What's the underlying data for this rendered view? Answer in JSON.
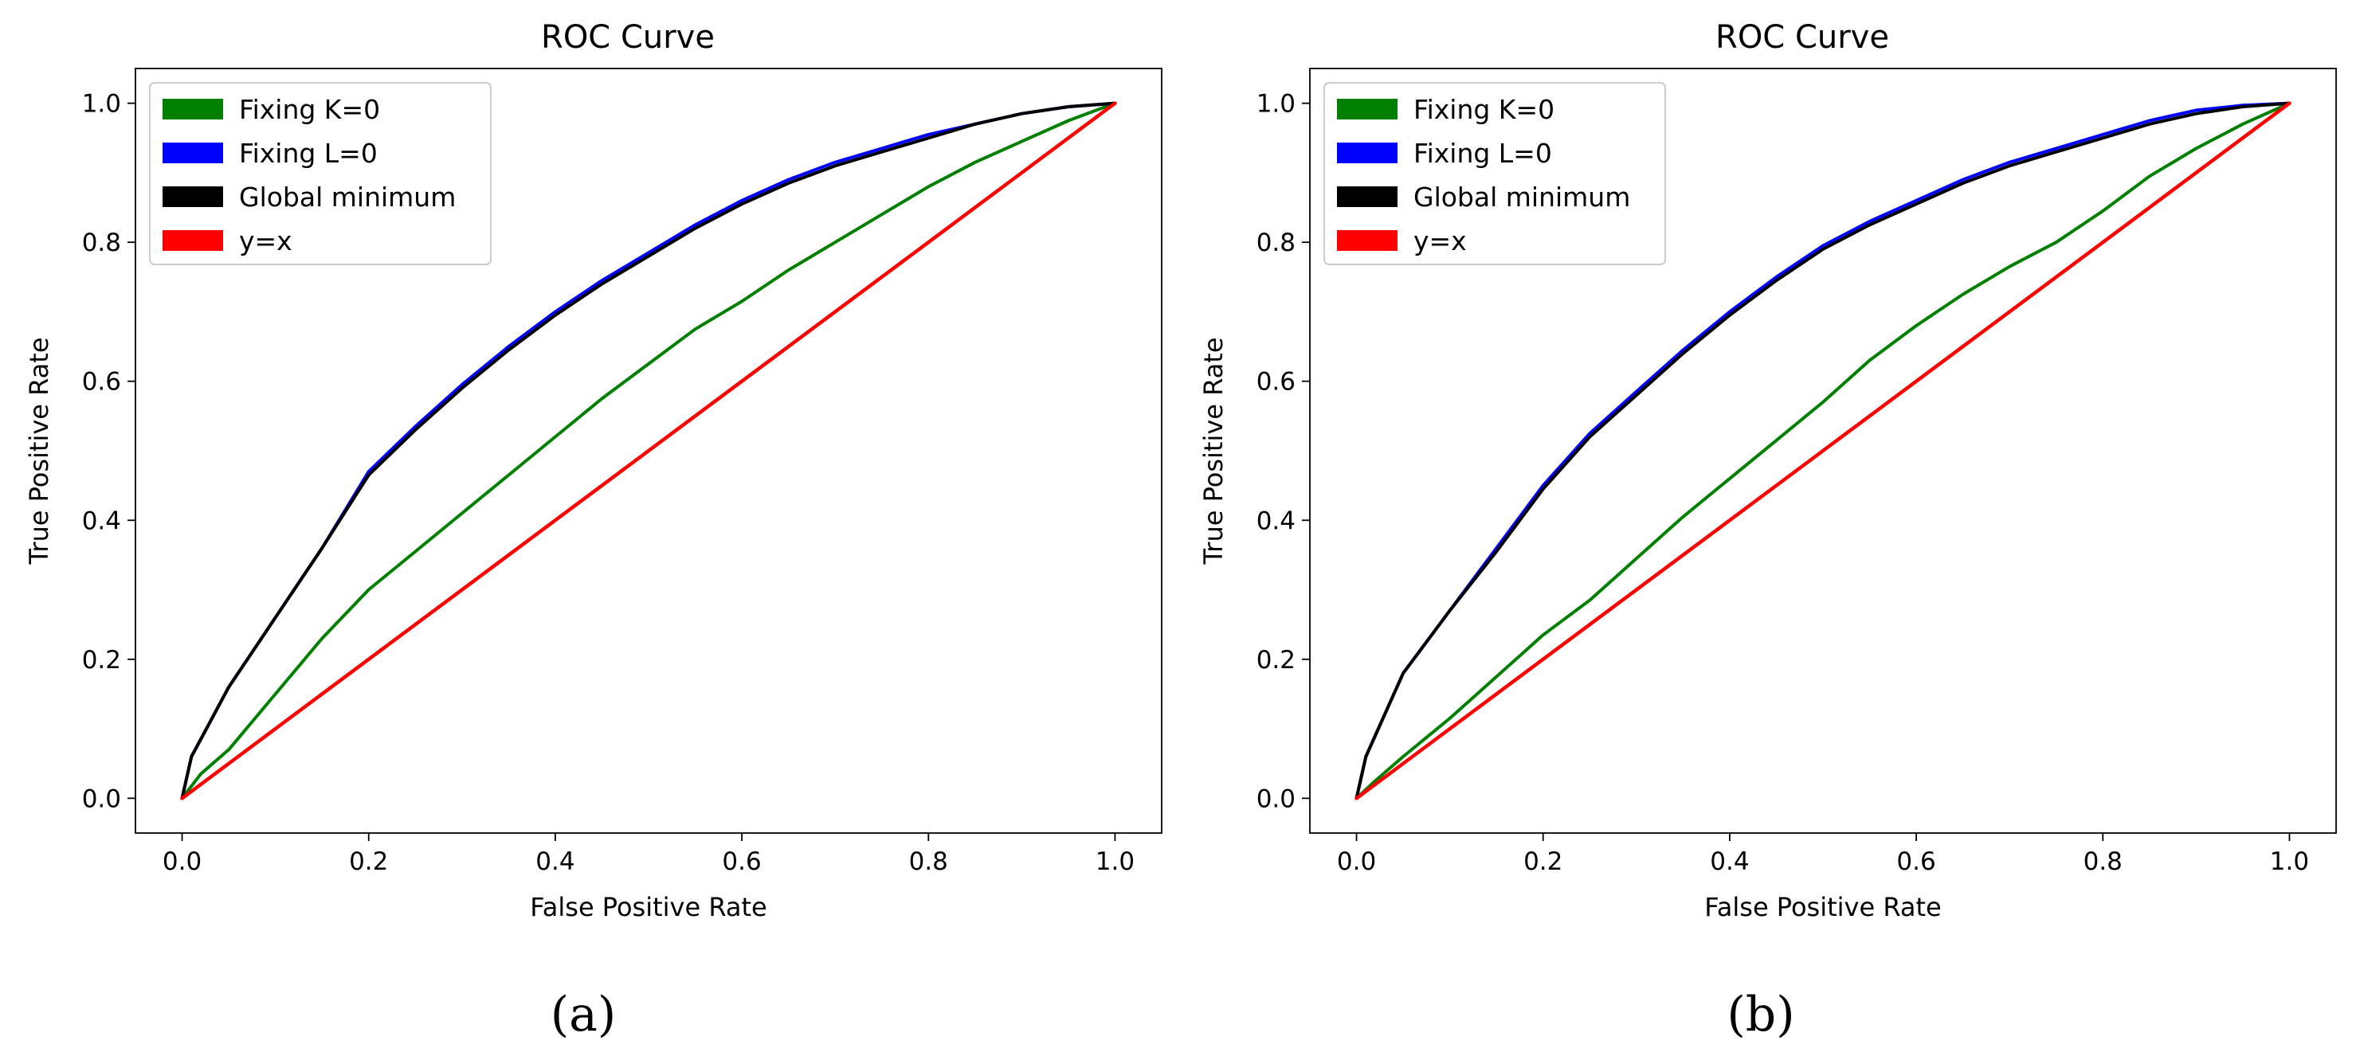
{
  "chart_data": [
    {
      "type": "line",
      "title": "ROC Curve",
      "xlabel": "False Positive Rate",
      "ylabel": "True Positive Rate",
      "caption": "(a)",
      "xlim": [
        -0.05,
        1.05
      ],
      "ylim": [
        -0.05,
        1.05
      ],
      "xticks": [
        "0.0",
        "0.2",
        "0.4",
        "0.6",
        "0.8",
        "1.0"
      ],
      "yticks": [
        "0.0",
        "0.2",
        "0.4",
        "0.6",
        "0.8",
        "1.0"
      ],
      "legend_position": "top-left",
      "series": [
        {
          "name": "Fixing K=0",
          "color": "#008000",
          "x": [
            0,
            0.02,
            0.05,
            0.1,
            0.15,
            0.2,
            0.25,
            0.3,
            0.35,
            0.4,
            0.45,
            0.5,
            0.55,
            0.6,
            0.65,
            0.7,
            0.75,
            0.8,
            0.85,
            0.9,
            0.95,
            1.0
          ],
          "y": [
            0,
            0.035,
            0.07,
            0.15,
            0.23,
            0.3,
            0.355,
            0.41,
            0.465,
            0.52,
            0.575,
            0.625,
            0.675,
            0.715,
            0.76,
            0.8,
            0.84,
            0.88,
            0.915,
            0.945,
            0.975,
            1.0
          ]
        },
        {
          "name": "Fixing L=0",
          "color": "#0000ff",
          "x": [
            0,
            0.01,
            0.03,
            0.05,
            0.1,
            0.15,
            0.2,
            0.25,
            0.3,
            0.35,
            0.4,
            0.45,
            0.5,
            0.55,
            0.6,
            0.65,
            0.7,
            0.75,
            0.8,
            0.85,
            0.9,
            0.95,
            1.0
          ],
          "y": [
            0,
            0.06,
            0.11,
            0.16,
            0.26,
            0.36,
            0.47,
            0.535,
            0.595,
            0.65,
            0.7,
            0.745,
            0.785,
            0.825,
            0.86,
            0.89,
            0.915,
            0.935,
            0.955,
            0.97,
            0.985,
            0.995,
            1.0
          ]
        },
        {
          "name": "Global minimum",
          "color": "#000000",
          "x": [
            0,
            0.01,
            0.03,
            0.05,
            0.1,
            0.15,
            0.2,
            0.25,
            0.3,
            0.35,
            0.4,
            0.45,
            0.5,
            0.55,
            0.6,
            0.65,
            0.7,
            0.75,
            0.8,
            0.85,
            0.9,
            0.95,
            1.0
          ],
          "y": [
            0,
            0.06,
            0.11,
            0.16,
            0.26,
            0.36,
            0.465,
            0.53,
            0.59,
            0.645,
            0.695,
            0.74,
            0.78,
            0.82,
            0.855,
            0.885,
            0.91,
            0.93,
            0.95,
            0.97,
            0.985,
            0.995,
            1.0
          ]
        },
        {
          "name": "y=x",
          "color": "#ff0000",
          "x": [
            0,
            1
          ],
          "y": [
            0,
            1
          ]
        }
      ]
    },
    {
      "type": "line",
      "title": "ROC Curve",
      "xlabel": "False Positive Rate",
      "ylabel": "True Positive Rate",
      "caption": "(b)",
      "xlim": [
        -0.05,
        1.05
      ],
      "ylim": [
        -0.05,
        1.05
      ],
      "xticks": [
        "0.0",
        "0.2",
        "0.4",
        "0.6",
        "0.8",
        "1.0"
      ],
      "yticks": [
        "0.0",
        "0.2",
        "0.4",
        "0.6",
        "0.8",
        "1.0"
      ],
      "legend_position": "top-left",
      "series": [
        {
          "name": "Fixing K=0",
          "color": "#008000",
          "x": [
            0,
            0.02,
            0.05,
            0.1,
            0.15,
            0.2,
            0.25,
            0.3,
            0.35,
            0.4,
            0.45,
            0.5,
            0.55,
            0.6,
            0.65,
            0.7,
            0.75,
            0.8,
            0.85,
            0.9,
            0.95,
            1.0
          ],
          "y": [
            0,
            0.025,
            0.06,
            0.115,
            0.175,
            0.235,
            0.285,
            0.345,
            0.405,
            0.46,
            0.515,
            0.57,
            0.63,
            0.68,
            0.725,
            0.765,
            0.8,
            0.845,
            0.895,
            0.935,
            0.97,
            1.0
          ]
        },
        {
          "name": "Fixing L=0",
          "color": "#0000ff",
          "x": [
            0,
            0.01,
            0.03,
            0.05,
            0.1,
            0.15,
            0.2,
            0.25,
            0.3,
            0.35,
            0.4,
            0.45,
            0.5,
            0.55,
            0.6,
            0.65,
            0.7,
            0.75,
            0.8,
            0.85,
            0.9,
            0.95,
            1.0
          ],
          "y": [
            0,
            0.06,
            0.12,
            0.18,
            0.27,
            0.36,
            0.45,
            0.525,
            0.585,
            0.645,
            0.7,
            0.75,
            0.795,
            0.83,
            0.86,
            0.89,
            0.915,
            0.935,
            0.955,
            0.975,
            0.99,
            0.997,
            1.0
          ]
        },
        {
          "name": "Global minimum",
          "color": "#000000",
          "x": [
            0,
            0.01,
            0.03,
            0.05,
            0.1,
            0.15,
            0.2,
            0.25,
            0.3,
            0.35,
            0.4,
            0.45,
            0.5,
            0.55,
            0.6,
            0.65,
            0.7,
            0.75,
            0.8,
            0.85,
            0.9,
            0.95,
            1.0
          ],
          "y": [
            0,
            0.06,
            0.12,
            0.18,
            0.27,
            0.355,
            0.445,
            0.52,
            0.58,
            0.64,
            0.695,
            0.745,
            0.79,
            0.825,
            0.855,
            0.885,
            0.91,
            0.93,
            0.95,
            0.97,
            0.985,
            0.995,
            1.0
          ]
        },
        {
          "name": "y=x",
          "color": "#ff0000",
          "x": [
            0,
            1
          ],
          "y": [
            0,
            1
          ]
        }
      ]
    }
  ]
}
